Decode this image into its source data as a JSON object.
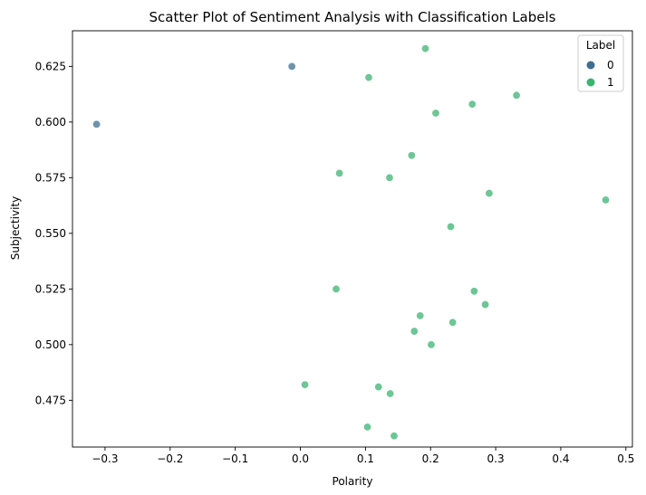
{
  "chart_data": {
    "type": "scatter",
    "title": "Scatter Plot of Sentiment Analysis with Classification Labels",
    "xlabel": "Polarity",
    "ylabel": "Subjectivity",
    "xlim": [
      -0.35,
      0.51
    ],
    "ylim": [
      0.454,
      0.641
    ],
    "xticks": [
      -0.3,
      -0.2,
      -0.1,
      0.0,
      0.1,
      0.2,
      0.3,
      0.4,
      0.5
    ],
    "xtick_labels": [
      "−0.3",
      "−0.2",
      "−0.1",
      "0.0",
      "0.1",
      "0.2",
      "0.3",
      "0.4",
      "0.5"
    ],
    "yticks": [
      0.475,
      0.5,
      0.525,
      0.55,
      0.575,
      0.6,
      0.625
    ],
    "ytick_labels": [
      "0.475",
      "0.500",
      "0.525",
      "0.550",
      "0.575",
      "0.600",
      "0.625"
    ],
    "grid": false,
    "legend": {
      "title": "Label",
      "position": "top-right"
    },
    "series": [
      {
        "name": "0",
        "color": "#3e6f8f",
        "points": [
          {
            "x": -0.313,
            "y": 0.599
          },
          {
            "x": -0.013,
            "y": 0.625
          }
        ]
      },
      {
        "name": "1",
        "color": "#3cb371",
        "points": [
          {
            "x": 0.192,
            "y": 0.633
          },
          {
            "x": 0.105,
            "y": 0.62
          },
          {
            "x": 0.332,
            "y": 0.612
          },
          {
            "x": 0.264,
            "y": 0.608
          },
          {
            "x": 0.208,
            "y": 0.604
          },
          {
            "x": 0.171,
            "y": 0.585
          },
          {
            "x": 0.06,
            "y": 0.577
          },
          {
            "x": 0.137,
            "y": 0.575
          },
          {
            "x": 0.29,
            "y": 0.568
          },
          {
            "x": 0.469,
            "y": 0.565
          },
          {
            "x": 0.231,
            "y": 0.553
          },
          {
            "x": 0.055,
            "y": 0.525
          },
          {
            "x": 0.267,
            "y": 0.524
          },
          {
            "x": 0.284,
            "y": 0.518
          },
          {
            "x": 0.184,
            "y": 0.513
          },
          {
            "x": 0.234,
            "y": 0.51
          },
          {
            "x": 0.175,
            "y": 0.506
          },
          {
            "x": 0.201,
            "y": 0.5
          },
          {
            "x": 0.007,
            "y": 0.482
          },
          {
            "x": 0.12,
            "y": 0.481
          },
          {
            "x": 0.138,
            "y": 0.478
          },
          {
            "x": 0.103,
            "y": 0.463
          },
          {
            "x": 0.144,
            "y": 0.459
          }
        ]
      }
    ]
  }
}
